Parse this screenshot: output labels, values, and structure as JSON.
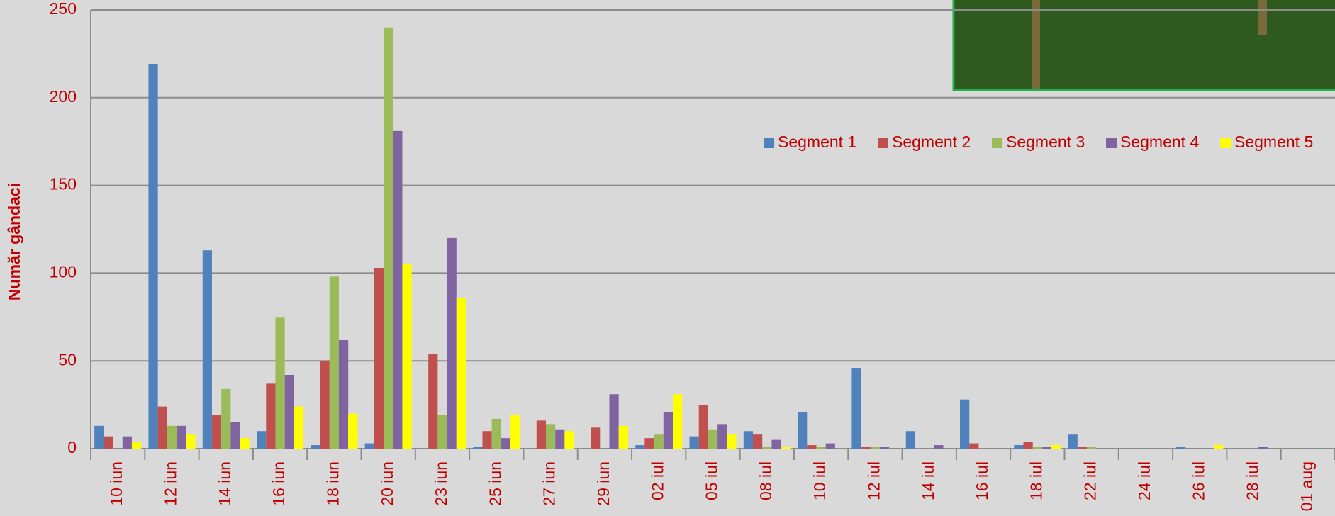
{
  "chart_data": {
    "type": "bar",
    "y_label": "Număr gândaci",
    "categories": [
      "10 iun",
      "12 iun",
      "14 iun",
      "16 iun",
      "18 iun",
      "20 iun",
      "23 iun",
      "25 iun",
      "27 iun",
      "29 iun",
      "02 iul",
      "05 iul",
      "08 iul",
      "10 iul",
      "12 iul",
      "14 iul",
      "16 iul",
      "18 iul",
      "22 iul",
      "24 iul",
      "26 iul",
      "28 iul",
      "01 aug"
    ],
    "series": [
      {
        "name": "Segment 1",
        "color": "#4f81bd",
        "values": [
          13,
          219,
          113,
          10,
          2,
          3,
          0,
          1,
          0,
          0,
          2,
          7,
          10,
          21,
          46,
          10,
          28,
          2,
          8,
          0,
          1,
          0,
          0
        ]
      },
      {
        "name": "Segment 2",
        "color": "#c0504d",
        "values": [
          7,
          24,
          19,
          37,
          50,
          103,
          54,
          10,
          16,
          12,
          6,
          25,
          8,
          2,
          1,
          0,
          3,
          4,
          1,
          0,
          0,
          0,
          0
        ]
      },
      {
        "name": "Segment 3",
        "color": "#9bbb59",
        "values": [
          0,
          13,
          34,
          75,
          98,
          240,
          19,
          17,
          14,
          0,
          8,
          11,
          1,
          1,
          1,
          0,
          0,
          1,
          1,
          0,
          0,
          0,
          0
        ]
      },
      {
        "name": "Segment 4",
        "color": "#8064a2",
        "values": [
          7,
          13,
          15,
          42,
          62,
          181,
          120,
          6,
          11,
          31,
          21,
          14,
          5,
          3,
          1,
          2,
          0,
          1,
          0,
          0,
          0,
          1,
          0
        ]
      },
      {
        "name": "Segment 5",
        "color": "#ffff00",
        "values": [
          4,
          8,
          6,
          24,
          20,
          105,
          86,
          19,
          10,
          13,
          31,
          8,
          1,
          0,
          0,
          0,
          0,
          2,
          0,
          0,
          2,
          0,
          0
        ]
      }
    ],
    "ylim": [
      0,
      250
    ],
    "yticks": [
      0,
      50,
      100,
      150,
      200,
      250
    ],
    "grid": true,
    "legend": "top-right"
  }
}
